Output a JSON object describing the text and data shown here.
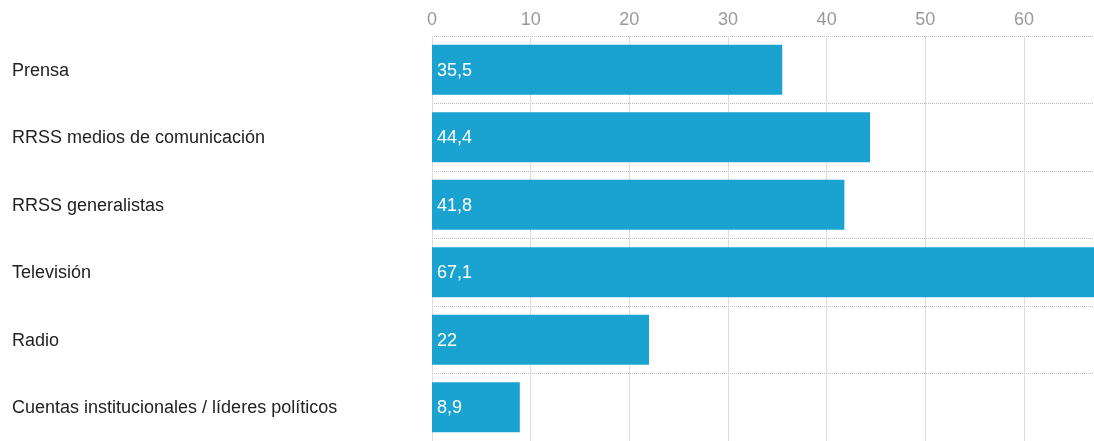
{
  "chart_data": {
    "type": "bar",
    "orientation": "horizontal",
    "categories": [
      "Prensa",
      "RRSS medios de comunicación",
      "RRSS generalistas",
      "Televisión",
      "Radio",
      "Cuentas institucionales / líderes políticos"
    ],
    "values": [
      35.5,
      44.4,
      41.8,
      67.1,
      22,
      8.9
    ],
    "color": "#1aa3d0",
    "value_labels": [
      "35,5",
      "44,4",
      "41,8",
      "67,1",
      "22",
      "8,9"
    ],
    "xlim": [
      0,
      67.1
    ],
    "xticks": [
      0,
      10,
      20,
      30,
      40,
      50,
      60
    ],
    "grid": true
  }
}
